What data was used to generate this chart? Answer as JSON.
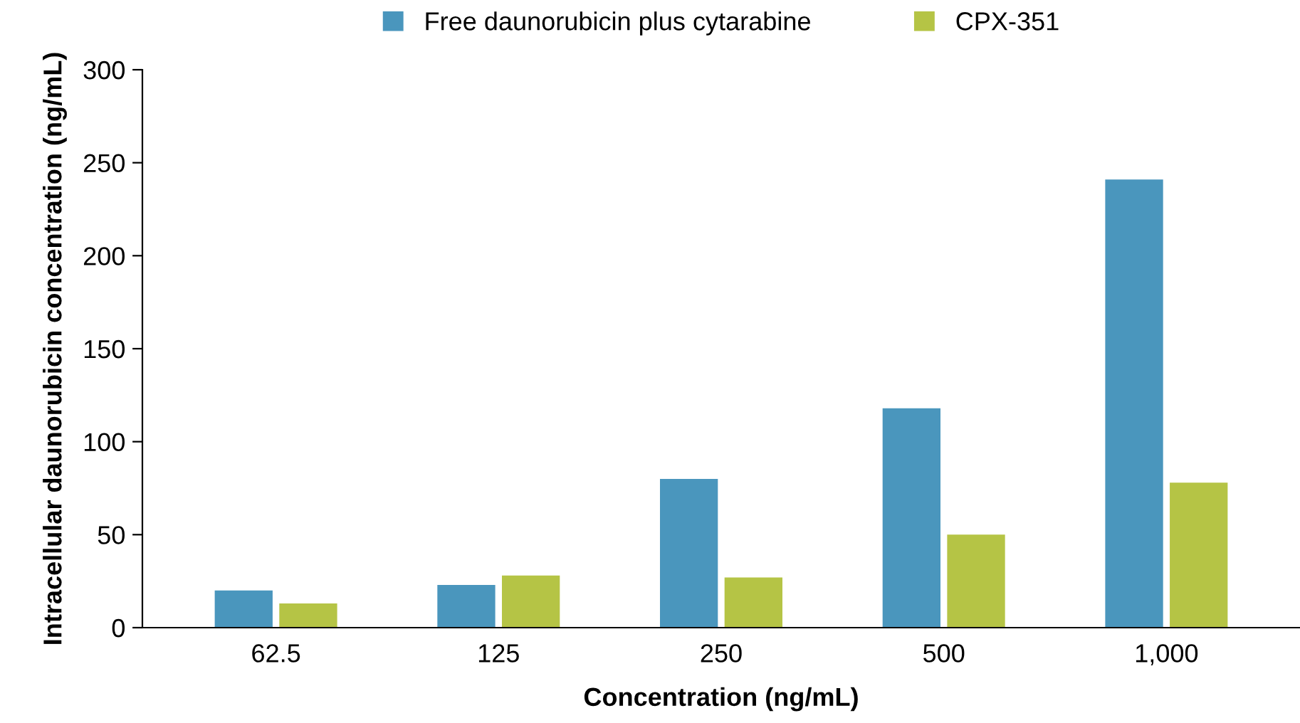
{
  "chart_data": {
    "type": "bar",
    "xlabel": "Concentration (ng/mL)",
    "ylabel": "Intracellular daunorubicin concentration (ng/mL)",
    "categories": [
      "62.5",
      "125",
      "250",
      "500",
      "1,000"
    ],
    "series": [
      {
        "name": "Free daunorubicin plus cytarabine",
        "color": "#4a96bd",
        "values": [
          20,
          23,
          80,
          118,
          241
        ]
      },
      {
        "name": "CPX-351",
        "color": "#b5c445",
        "values": [
          13,
          28,
          27,
          50,
          78
        ]
      }
    ],
    "ylim": [
      0,
      300
    ],
    "yticks": [
      0,
      50,
      100,
      150,
      200,
      250,
      300
    ],
    "grid": false,
    "legend": "top"
  }
}
